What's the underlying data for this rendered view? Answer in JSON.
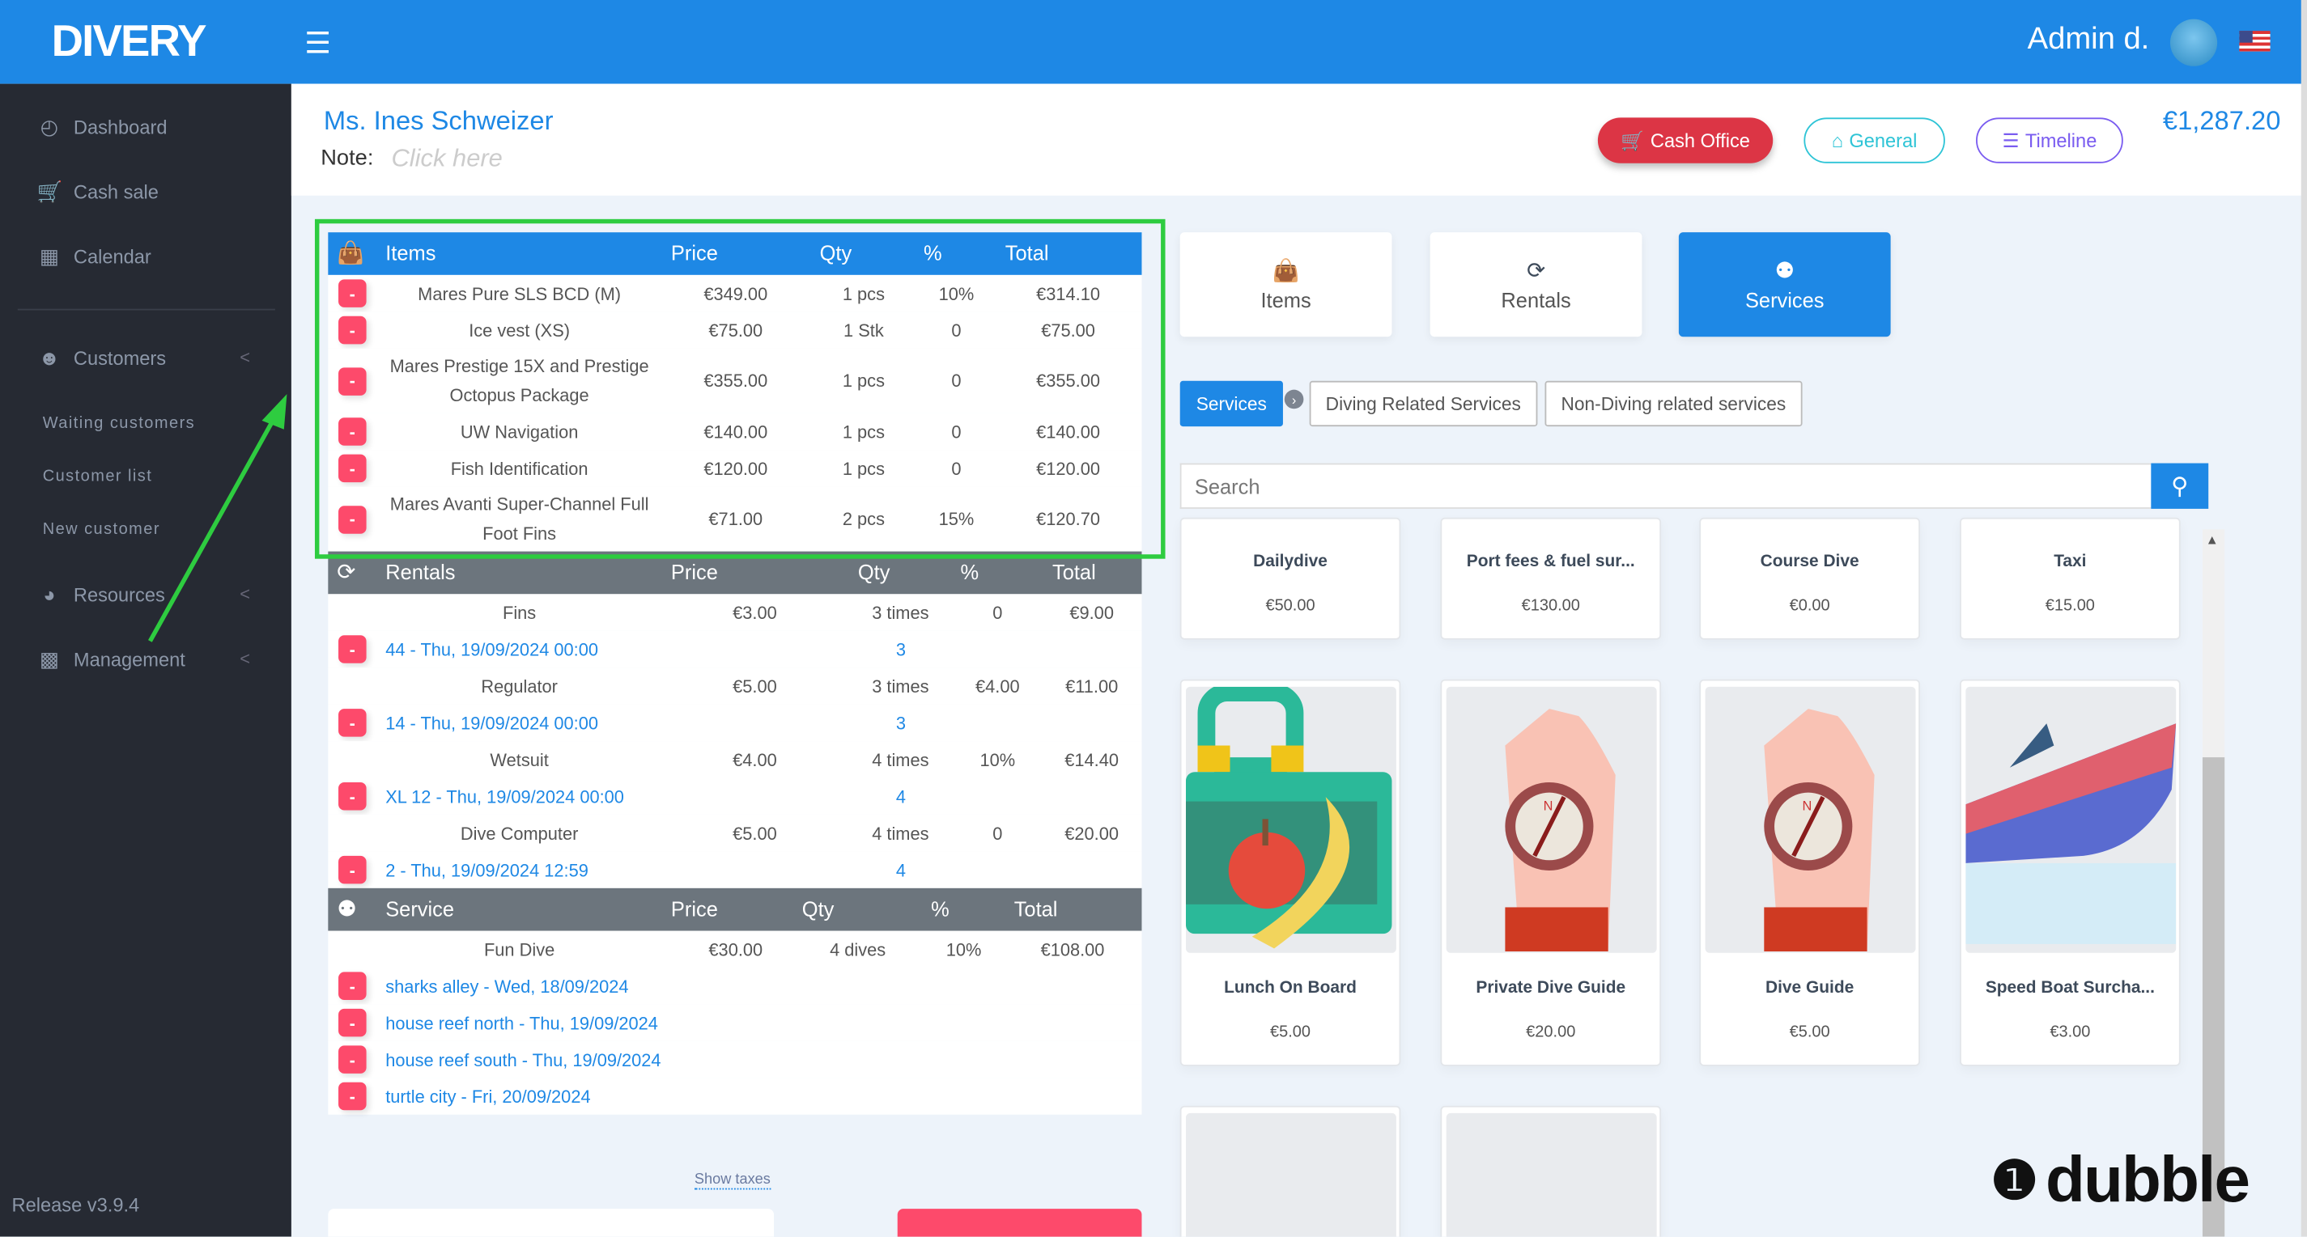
{
  "header": {
    "logo": "DIVERY",
    "user": "Admin d.",
    "menu_icon": "hamburger-icon",
    "flag": "us-flag-icon"
  },
  "sidebar": {
    "items": [
      {
        "label": "Dashboard",
        "icon": "dashboard-icon"
      },
      {
        "label": "Cash sale",
        "icon": "cart-icon"
      },
      {
        "label": "Calendar",
        "icon": "calendar-icon"
      },
      {
        "label": "Customers",
        "icon": "customers-icon"
      },
      {
        "label": "Resources",
        "icon": "gauge-icon"
      },
      {
        "label": "Management",
        "icon": "report-icon"
      }
    ],
    "customers_sub": [
      "Waiting customers",
      "Customer list",
      "New customer"
    ],
    "release": "Release v3.9.4"
  },
  "customer": {
    "name": "Ms. Ines  Schweizer",
    "note_label": "Note:",
    "note_placeholder": "Click here"
  },
  "actions": {
    "cash_office": "Cash Office",
    "general": "General",
    "timeline": "Timeline",
    "total": "€1,287.20"
  },
  "cart": {
    "items": {
      "headers": [
        "Items",
        "Price",
        "Qty",
        "%",
        "Total"
      ],
      "rows": [
        {
          "name": "Mares Pure SLS BCD (M)",
          "price": "€349.00",
          "qty": "1 pcs",
          "pct": "10%",
          "total": "€314.10"
        },
        {
          "name": "Ice vest (XS)",
          "price": "€75.00",
          "qty": "1 Stk",
          "pct": "0",
          "total": "€75.00"
        },
        {
          "name": "Mares Prestige 15X and Prestige Octopus Package",
          "price": "€355.00",
          "qty": "1 pcs",
          "pct": "0",
          "total": "€355.00"
        },
        {
          "name": "UW Navigation",
          "price": "€140.00",
          "qty": "1 pcs",
          "pct": "0",
          "total": "€140.00"
        },
        {
          "name": "Fish Identification",
          "price": "€120.00",
          "qty": "1 pcs",
          "pct": "0",
          "total": "€120.00"
        },
        {
          "name": "Mares Avanti Super-Channel Full Foot Fins",
          "price": "€71.00",
          "qty": "2 pcs",
          "pct": "15%",
          "total": "€120.70"
        }
      ]
    },
    "rentals": {
      "headers": [
        "Rentals",
        "Price",
        "Qty",
        "%",
        "Total"
      ],
      "rows": [
        {
          "name": "Fins",
          "price": "€3.00",
          "qty": "3 times",
          "pct": "0",
          "total": "€9.00",
          "booking": "44 - Thu, 19/09/2024 00:00",
          "booking_qty": "3"
        },
        {
          "name": "Regulator",
          "price": "€5.00",
          "qty": "3 times",
          "pct": "€4.00",
          "total": "€11.00",
          "booking": "14 - Thu, 19/09/2024 00:00",
          "booking_qty": "3"
        },
        {
          "name": "Wetsuit",
          "price": "€4.00",
          "qty": "4 times",
          "pct": "10%",
          "total": "€14.40",
          "booking": "XL 12 - Thu, 19/09/2024 00:00",
          "booking_qty": "4"
        },
        {
          "name": "Dive Computer",
          "price": "€5.00",
          "qty": "4 times",
          "pct": "0",
          "total": "€20.00",
          "booking": "2 - Thu, 19/09/2024 12:59",
          "booking_qty": "4"
        }
      ]
    },
    "service": {
      "headers": [
        "Service",
        "Price",
        "Qty",
        "%",
        "Total"
      ],
      "rows": [
        {
          "name": "Fun Dive",
          "price": "€30.00",
          "qty": "4 dives",
          "pct": "10%",
          "total": "€108.00",
          "bookings": [
            "sharks alley - Wed, 18/09/2024",
            "house reef north - Thu, 19/09/2024",
            "house reef south - Thu, 19/09/2024",
            "turtle city - Fri, 20/09/2024"
          ]
        }
      ]
    },
    "remove_label": "-",
    "show_taxes": "Show taxes"
  },
  "catalog": {
    "tiles": [
      {
        "label": "Items",
        "active": false
      },
      {
        "label": "Rentals",
        "active": false
      },
      {
        "label": "Services",
        "active": true
      }
    ],
    "categories": [
      "Services",
      "Diving Related Services",
      "Non-Diving related services"
    ],
    "search_placeholder": "Search",
    "products": [
      {
        "name": "Dailydive",
        "price": "€50.00"
      },
      {
        "name": "Port fees & fuel sur...",
        "price": "€130.00"
      },
      {
        "name": "Course Dive",
        "price": "€0.00"
      },
      {
        "name": "Taxi",
        "price": "€15.00"
      },
      {
        "name": "Lunch On Board",
        "price": "€5.00",
        "image": "lunchbox"
      },
      {
        "name": "Private Dive Guide",
        "price": "€20.00",
        "image": "compass"
      },
      {
        "name": "Dive Guide",
        "price": "€5.00",
        "image": "compass"
      },
      {
        "name": "Speed Boat Surcha...",
        "price": "€3.00",
        "image": "boat"
      }
    ]
  },
  "watermark": "dubble"
}
